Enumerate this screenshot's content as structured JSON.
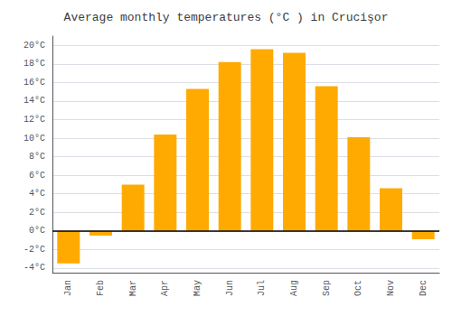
{
  "chart_data": {
    "type": "bar",
    "title": "Average monthly temperatures (°C ) in Crucişor",
    "categories": [
      "Jan",
      "Feb",
      "Mar",
      "Apr",
      "May",
      "Jun",
      "Jul",
      "Aug",
      "Sep",
      "Oct",
      "Nov",
      "Dec"
    ],
    "values": [
      -3.5,
      -0.5,
      5.0,
      10.4,
      15.3,
      18.2,
      19.6,
      19.2,
      15.6,
      10.1,
      4.6,
      -0.9
    ],
    "color": "#FFAA00",
    "ylim": [
      -4.5,
      21
    ],
    "yticks": [
      {
        "value": -4,
        "label": "-4°C"
      },
      {
        "value": -2,
        "label": "-2°C"
      },
      {
        "value": 0,
        "label": "0°C"
      },
      {
        "value": 2,
        "label": "2°C"
      },
      {
        "value": 4,
        "label": "4°C"
      },
      {
        "value": 6,
        "label": "6°C"
      },
      {
        "value": 8,
        "label": "8°C"
      },
      {
        "value": 10,
        "label": "10°C"
      },
      {
        "value": 12,
        "label": "12°C"
      },
      {
        "value": 14,
        "label": "14°C"
      },
      {
        "value": 16,
        "label": "16°C"
      },
      {
        "value": 18,
        "label": "18°C"
      },
      {
        "value": 20,
        "label": "20°C"
      }
    ],
    "grid": true
  }
}
